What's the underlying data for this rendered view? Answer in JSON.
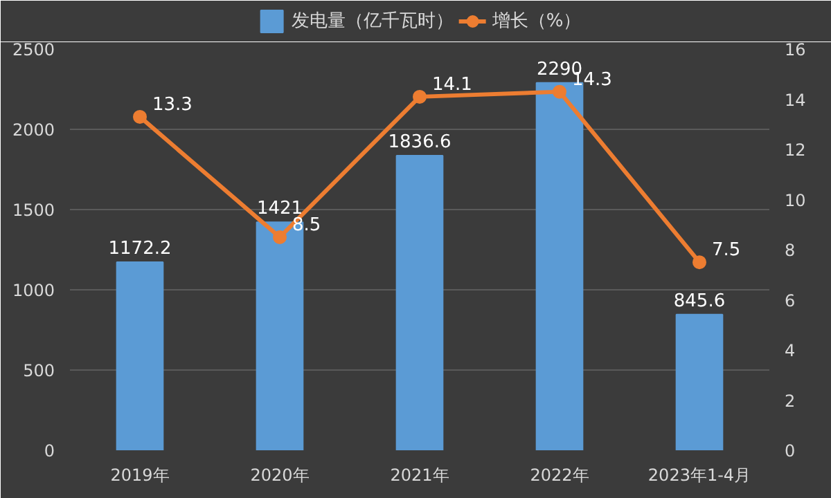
{
  "chart_data": {
    "type": "bar",
    "categories": [
      "2019年",
      "2020年",
      "2021年",
      "2022年",
      "2023年1-4月"
    ],
    "series": [
      {
        "name": "发电量（亿千瓦时）",
        "color": "#5b9bd5",
        "values": [
          1172.2,
          1421,
          1836.6,
          2290,
          845.6
        ]
      },
      {
        "name": "增长（%）",
        "type": "line",
        "axis": "y2",
        "color": "#ed7d31",
        "values": [
          13.3,
          8.5,
          14.1,
          14.3,
          7.5
        ]
      }
    ],
    "ylim": [
      0,
      2500
    ],
    "yticks": [
      0,
      500,
      1000,
      1500,
      2000,
      2500
    ],
    "y2lim": [
      0,
      16
    ],
    "y2ticks": [
      0,
      2,
      4,
      6,
      8,
      10,
      12,
      14,
      16
    ],
    "grid": "y",
    "legend": "top",
    "marker": "circle",
    "data_labels": true
  }
}
